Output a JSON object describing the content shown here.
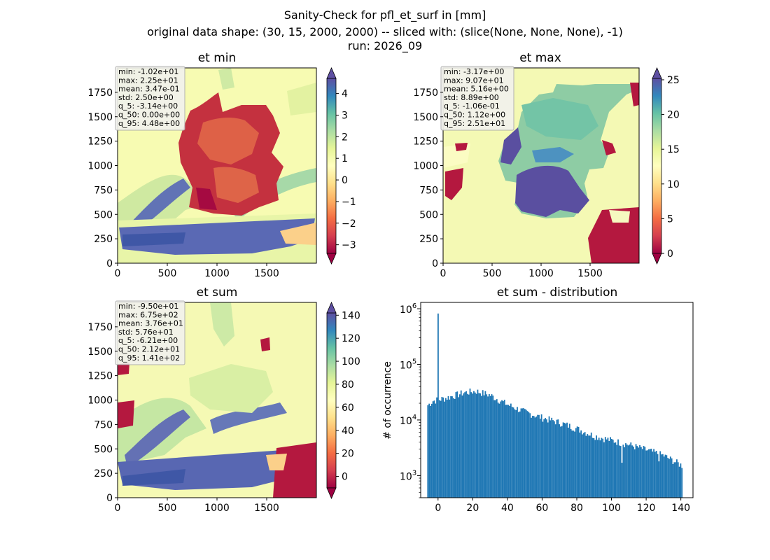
{
  "suptitle": {
    "line1": "Sanity-Check for pfl_et_surf in [mm]",
    "line2": "original data shape: (30, 15, 2000, 2000) -- sliced with: (slice(None, None, None), -1)",
    "line3": "run: 2026_09"
  },
  "chart_data": [
    {
      "type": "heatmap",
      "title": "et min",
      "x_ticks": [
        "0",
        "500",
        "1000",
        "1500"
      ],
      "y_ticks": [
        "0",
        "250",
        "500",
        "750",
        "1000",
        "1250",
        "1500",
        "1750"
      ],
      "xlim": [
        0,
        2000
      ],
      "ylim": [
        0,
        2000
      ],
      "colormap": "Spectral",
      "colorbar": {
        "ticks": [
          "−3",
          "−2",
          "−1",
          "0",
          "1",
          "2",
          "3",
          "4"
        ],
        "vmin": -3.4,
        "vmax": 4.7,
        "extend": "both"
      },
      "stats": [
        "min: -1.02e+01",
        "max: 2.25e+01",
        "mean: 3.47e-01",
        "std: 2.50e+00",
        "q_5: -3.14e+00",
        "q_50: 0.00e+00",
        "q_95: 4.48e+00"
      ]
    },
    {
      "type": "heatmap",
      "title": "et max",
      "x_ticks": [
        "0",
        "500",
        "1000",
        "1500"
      ],
      "y_ticks": [
        "0",
        "250",
        "500",
        "750",
        "1000",
        "1250",
        "1500",
        "1750"
      ],
      "xlim": [
        0,
        2000
      ],
      "ylim": [
        0,
        2000
      ],
      "colormap": "Spectral",
      "colorbar": {
        "ticks": [
          "0",
          "5",
          "10",
          "15",
          "20",
          "25"
        ],
        "vmin": 0,
        "vmax": 25.2,
        "extend": "both"
      },
      "stats": [
        "min: -3.17e+00",
        "max: 9.07e+01",
        "mean: 5.16e+00",
        "std: 8.89e+00",
        "q_5: -1.06e-01",
        "q_50: 1.12e+00",
        "q_95: 2.51e+01"
      ]
    },
    {
      "type": "heatmap",
      "title": "et sum",
      "x_ticks": [
        "0",
        "500",
        "1000",
        "1500"
      ],
      "y_ticks": [
        "0",
        "250",
        "500",
        "750",
        "1000",
        "1250",
        "1500",
        "1750"
      ],
      "xlim": [
        0,
        2000
      ],
      "ylim": [
        0,
        2000
      ],
      "colormap": "Spectral",
      "colorbar": {
        "ticks": [
          "0",
          "20",
          "40",
          "60",
          "80",
          "100",
          "120",
          "140"
        ],
        "vmin": -10,
        "vmax": 142,
        "extend": "both"
      },
      "stats": [
        "min: -9.50e+01",
        "max: 6.75e+02",
        "mean: 3.76e+01",
        "std: 5.76e+01",
        "q_5: -6.21e+00",
        "q_50: 2.12e+01",
        "q_95: 1.41e+02"
      ]
    },
    {
      "type": "bar",
      "title": "et sum - distribution",
      "ylabel": "# of occurrence",
      "xlabel": "",
      "yscale": "log",
      "xlim": [
        -10,
        147
      ],
      "ylim": [
        400,
        1300000
      ],
      "x_ticks": [
        "0",
        "20",
        "40",
        "60",
        "80",
        "100",
        "120",
        "140"
      ],
      "y_ticks": [
        "10^3",
        "10^4",
        "10^5",
        "10^6"
      ],
      "color": "#1f77b4",
      "bin_range": [
        -6.21,
        141
      ],
      "spikes": [
        {
          "x": 0.0,
          "count": 820000
        },
        {
          "x": 106.0,
          "count": 1700
        },
        {
          "x": 127.5,
          "count": 1800
        }
      ],
      "profile": [
        {
          "x": -6.2,
          "count": 18000
        },
        {
          "x": -3,
          "count": 22000
        },
        {
          "x": 5,
          "count": 25000
        },
        {
          "x": 15,
          "count": 31000
        },
        {
          "x": 22,
          "count": 33000
        },
        {
          "x": 30,
          "count": 28000
        },
        {
          "x": 40,
          "count": 19000
        },
        {
          "x": 50,
          "count": 14000
        },
        {
          "x": 60,
          "count": 11000
        },
        {
          "x": 70,
          "count": 9000
        },
        {
          "x": 80,
          "count": 7000
        },
        {
          "x": 90,
          "count": 5200
        },
        {
          "x": 100,
          "count": 4300
        },
        {
          "x": 110,
          "count": 3600
        },
        {
          "x": 120,
          "count": 2900
        },
        {
          "x": 130,
          "count": 2300
        },
        {
          "x": 141,
          "count": 1500
        }
      ]
    }
  ]
}
